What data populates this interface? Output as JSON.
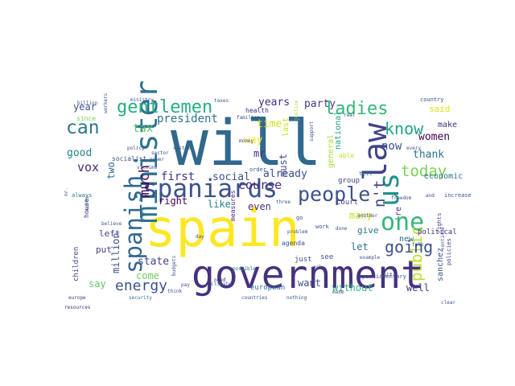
{
  "figure": {
    "type": "wordcloud",
    "background": "#ffffff"
  },
  "words": [
    {
      "text": "will",
      "color": "#31688e"
    },
    {
      "text": "spain",
      "color": "#fde725"
    },
    {
      "text": "government",
      "color": "#46327e"
    },
    {
      "text": "minister",
      "color": "#2c728e"
    },
    {
      "text": "spaniards",
      "color": "#3b528b"
    },
    {
      "text": "law",
      "color": "#414487"
    },
    {
      "text": "us",
      "color": "#21918c"
    },
    {
      "text": "spanish",
      "color": "#31688e"
    },
    {
      "text": "one",
      "color": "#35b779"
    },
    {
      "text": "people",
      "color": "#3b528b"
    },
    {
      "text": "n't",
      "color": "#414487"
    },
    {
      "text": "gentlemen",
      "color": "#27ad81"
    },
    {
      "text": "ladies",
      "color": "#35b779"
    },
    {
      "text": "can",
      "color": "#2a788e"
    },
    {
      "text": "know",
      "color": "#20a486"
    },
    {
      "text": "public",
      "color": "#bddf26"
    },
    {
      "text": "going",
      "color": "#3b528b"
    },
    {
      "text": "energy",
      "color": "#3b528b"
    },
    {
      "text": "much",
      "color": "#440154"
    },
    {
      "text": "today",
      "color": "#7ad151"
    },
    {
      "text": "course",
      "color": "#472d7b"
    },
    {
      "text": "first",
      "color": "#46327e"
    },
    {
      "text": "social",
      "color": "#3b528b"
    },
    {
      "text": "vox",
      "color": "#482878"
    },
    {
      "text": "years",
      "color": "#472d7b"
    },
    {
      "text": "party",
      "color": "#443983"
    },
    {
      "text": "president",
      "color": "#2c728e"
    },
    {
      "text": "tax",
      "color": "#52c569"
    },
    {
      "text": "way",
      "color": "#fde725"
    },
    {
      "text": "time",
      "color": "#d2e21b"
    },
    {
      "text": "mr",
      "color": "#472c7a"
    },
    {
      "text": "must",
      "color": "#3e4989"
    },
    {
      "text": "last",
      "color": "#c2df23"
    },
    {
      "text": "general",
      "color": "#a8db34"
    },
    {
      "text": "national",
      "color": "#1fa088"
    },
    {
      "text": "now",
      "color": "#3b528b"
    },
    {
      "text": "women",
      "color": "#440154"
    },
    {
      "text": "thank",
      "color": "#2c728e"
    },
    {
      "text": "good",
      "color": "#26828e"
    },
    {
      "text": "year",
      "color": "#3b528b"
    },
    {
      "text": "two",
      "color": "#31688e"
    },
    {
      "text": "already",
      "color": "#3b528b"
    },
    {
      "text": "right",
      "color": "#440154"
    },
    {
      "text": "like",
      "color": "#26828e"
    },
    {
      "text": "even",
      "color": "#46327e"
    },
    {
      "text": "many",
      "color": "#c8e020"
    },
    {
      "text": "give",
      "color": "#2a788e"
    },
    {
      "text": "let",
      "color": "#2c728e"
    },
    {
      "text": "million",
      "color": "#3b528b"
    },
    {
      "text": "left",
      "color": "#443983"
    },
    {
      "text": "put",
      "color": "#414487"
    },
    {
      "text": "state",
      "color": "#414487"
    },
    {
      "text": "come",
      "color": "#6ece58"
    },
    {
      "text": "say",
      "color": "#5ec962"
    },
    {
      "text": "without",
      "color": "#32b67a"
    },
    {
      "text": "well",
      "color": "#453781"
    },
    {
      "text": "want",
      "color": "#3b528b"
    },
    {
      "text": "european",
      "color": "#2a788e"
    },
    {
      "text": "said",
      "color": "#dde318"
    },
    {
      "text": "make",
      "color": "#472d7b"
    },
    {
      "text": "economic",
      "color": "#2c728e"
    },
    {
      "text": "sanchez",
      "color": "#3b528b"
    },
    {
      "text": "children",
      "color": "#3e4989"
    },
    {
      "text": "house",
      "color": "#433e85"
    },
    {
      "text": "group",
      "color": "#414487"
    },
    {
      "text": "court",
      "color": "#443983"
    },
    {
      "text": "agenda",
      "color": "#3b528b"
    },
    {
      "text": "measures",
      "color": "#482475"
    },
    {
      "text": "just",
      "color": "#3b528b"
    },
    {
      "text": "see",
      "color": "#3b528b"
    },
    {
      "text": "new",
      "color": "#2c728e"
    },
    {
      "text": "'re",
      "color": "#46327e"
    },
    {
      "text": "political",
      "color": "#472d7b"
    },
    {
      "text": "socialist",
      "color": "#3b528b"
    },
    {
      "text": "order",
      "color": "#3b528b"
    },
    {
      "text": "health",
      "color": "#482878"
    },
    {
      "text": "real",
      "color": "#3b528b"
    },
    {
      "text": "country",
      "color": "#3b528b"
    },
    {
      "text": "since",
      "color": "#7ad151"
    },
    {
      "text": "always",
      "color": "#2c728e"
    },
    {
      "text": "rights",
      "color": "#3e4989"
    },
    {
      "text": "policies",
      "color": "#414487"
    },
    {
      "text": "increase",
      "color": "#3b528b"
    },
    {
      "text": "work",
      "color": "#3b528b"
    },
    {
      "text": "parliamentary",
      "color": "#3b528b"
    },
    {
      "text": "europe",
      "color": "#443983"
    },
    {
      "text": "resources",
      "color": "#472d7b"
    },
    {
      "text": "security",
      "color": "#2c728e"
    },
    {
      "text": "climate",
      "color": "#2c728e"
    },
    {
      "text": "budgets",
      "color": "#3b528b"
    },
    {
      "text": "euros",
      "color": "#3b528b"
    },
    {
      "text": "clear",
      "color": "#3b528b"
    },
    {
      "text": "taxes",
      "color": "#3b528b"
    },
    {
      "text": "need",
      "color": "#472d7b"
    },
    {
      "text": "countries",
      "color": "#3b528b"
    },
    {
      "text": "nothing",
      "color": "#3b528b"
    },
    {
      "text": "example",
      "color": "#3b528b"
    },
    {
      "text": "possible",
      "color": "#2c728e"
    },
    {
      "text": "ministry",
      "color": "#3b528b"
    },
    {
      "text": "policy",
      "color": "#3b528b"
    },
    {
      "text": "families",
      "color": "#3b528b"
    },
    {
      "text": "justice",
      "color": "#a8db34"
    },
    {
      "text": "able",
      "color": "#c8e020"
    },
    {
      "text": "tell",
      "color": "#2c728e"
    },
    {
      "text": "another",
      "color": "#3b528b"
    },
    {
      "text": "problem",
      "color": "#3b528b"
    },
    {
      "text": "believe",
      "color": "#3b528b"
    },
    {
      "text": "victims",
      "color": "#3b528b"
    },
    {
      "text": "freedom",
      "color": "#3b528b"
    },
    {
      "text": "self",
      "color": "#3b528b"
    },
    {
      "text": "talk",
      "color": "#3b528b"
    },
    {
      "text": "every",
      "color": "#3b528b"
    },
    {
      "text": "continue",
      "color": "#3b528b"
    },
    {
      "text": "support",
      "color": "#3b528b"
    },
    {
      "text": "money",
      "color": "#3b528b"
    },
    {
      "text": "sector",
      "color": "#3b528b"
    },
    {
      "text": "system",
      "color": "#3b528b"
    },
    {
      "text": "power",
      "color": "#3b528b"
    },
    {
      "text": "think",
      "color": "#3b528b"
    },
    {
      "text": "pay",
      "color": "#3b528b"
    },
    {
      "text": "ask",
      "color": "#3b528b"
    },
    {
      "text": "go",
      "color": "#3b528b"
    },
    {
      "text": "made",
      "color": "#3b528b"
    },
    {
      "text": "done",
      "color": "#3b528b"
    },
    {
      "text": "three",
      "color": "#3b528b"
    },
    {
      "text": "day",
      "color": "#3b528b"
    },
    {
      "text": "and",
      "color": "#3b528b"
    },
    {
      "text": "billion",
      "color": "#3b528b"
    },
    {
      "text": "workers",
      "color": "#3b528b"
    },
    {
      "text": "mr.",
      "color": "#3b528b"
    }
  ]
}
